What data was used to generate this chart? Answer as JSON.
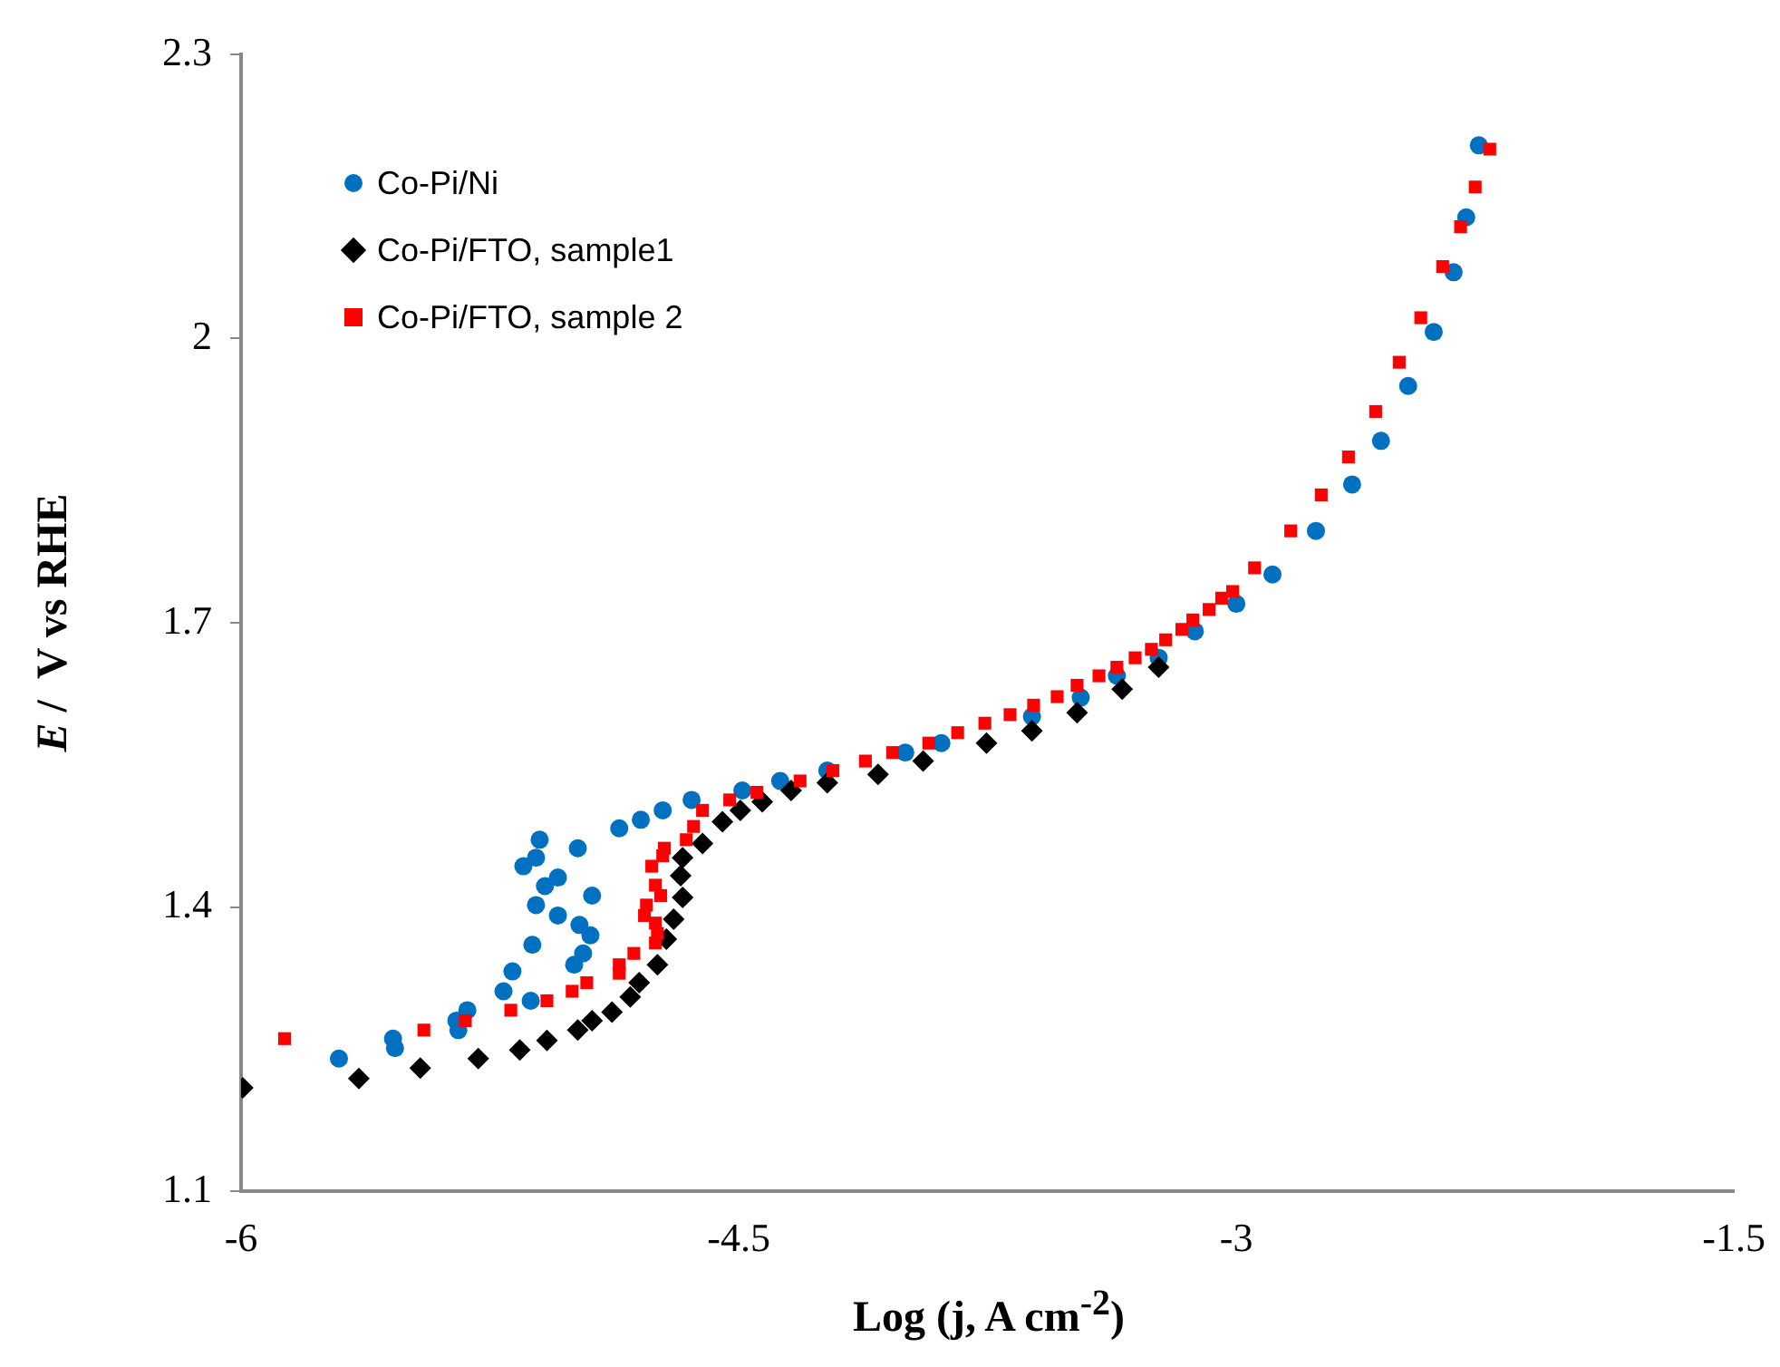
{
  "chart_data": {
    "type": "scatter",
    "xlabel": "Log (j, A cm$^{-2}$)",
    "ylabel": "E /  V vs RHE",
    "xlim": [
      -6,
      -1.5
    ],
    "xticks": [
      -6,
      -4.5,
      -3,
      -1.5
    ],
    "ylim": [
      1.1,
      2.3
    ],
    "yticks": [
      1.1,
      1.4,
      1.7,
      2,
      2.3
    ],
    "grid": false,
    "legend": "top left",
    "series": [
      {
        "name": "Co-Pi/Ni",
        "color": "#0070c0",
        "marker": "circle",
        "x": [
          -5.705,
          -5.542,
          -5.536,
          -5.351,
          -5.345,
          -5.318,
          -5.209,
          -5.182,
          -5.127,
          -5.122,
          -5.111,
          -5.149,
          -5.1,
          -5.111,
          -5.084,
          -5.045,
          -5.045,
          -4.996,
          -4.969,
          -4.98,
          -4.947,
          -4.942,
          -4.985,
          -4.86,
          -4.795,
          -4.729,
          -4.642,
          -4.489,
          -4.375,
          -4.233,
          -3.998,
          -3.889,
          -3.616,
          -3.469,
          -3.36,
          -3.234,
          -3.125,
          -3,
          -2.891,
          -2.76,
          -2.651,
          -2.564,
          -2.482,
          -2.405,
          -2.345,
          -2.307,
          -2.269
        ],
        "values": [
          1.24,
          1.261,
          1.251,
          1.28,
          1.27,
          1.291,
          1.311,
          1.332,
          1.301,
          1.36,
          1.402,
          1.443,
          1.471,
          1.452,
          1.422,
          1.431,
          1.391,
          1.339,
          1.351,
          1.381,
          1.37,
          1.412,
          1.462,
          1.483,
          1.492,
          1.502,
          1.513,
          1.523,
          1.533,
          1.544,
          1.563,
          1.573,
          1.601,
          1.621,
          1.644,
          1.663,
          1.691,
          1.72,
          1.751,
          1.797,
          1.846,
          1.892,
          1.95,
          2.007,
          2.07,
          2.128,
          2.204
        ]
      },
      {
        "name": "Co-Pi/FTO, sample1",
        "color": "#000000",
        "marker": "diamond",
        "x": [
          -5.995,
          -5.645,
          -5.46,
          -5.285,
          -5.16,
          -5.078,
          -4.985,
          -4.942,
          -4.882,
          -4.827,
          -4.8,
          -4.745,
          -4.718,
          -4.696,
          -4.669,
          -4.675,
          -4.669,
          -4.609,
          -4.549,
          -4.495,
          -4.429,
          -4.342,
          -4.233,
          -4.08,
          -3.944,
          -3.753,
          -3.616,
          -3.48,
          -3.344,
          -3.234
        ],
        "values": [
          1.209,
          1.219,
          1.23,
          1.24,
          1.249,
          1.259,
          1.27,
          1.28,
          1.289,
          1.305,
          1.32,
          1.339,
          1.366,
          1.387,
          1.41,
          1.433,
          1.452,
          1.467,
          1.49,
          1.502,
          1.511,
          1.523,
          1.531,
          1.54,
          1.554,
          1.573,
          1.586,
          1.605,
          1.63,
          1.653
        ]
      },
      {
        "name": "Co-Pi/FTO, sample 2",
        "color": "#ff0000",
        "marker": "square",
        "x": [
          -5.869,
          -5.449,
          -5.324,
          -5.187,
          -5.078,
          -5.002,
          -4.958,
          -4.86,
          -4.86,
          -4.816,
          -4.751,
          -4.745,
          -4.751,
          -4.784,
          -4.778,
          -4.735,
          -4.751,
          -4.762,
          -4.729,
          -4.724,
          -4.658,
          -4.636,
          -4.609,
          -4.527,
          -4.445,
          -4.315,
          -4.216,
          -4.118,
          -4.036,
          -3.927,
          -3.84,
          -3.758,
          -3.682,
          -3.611,
          -3.54,
          -3.48,
          -3.414,
          -3.36,
          -3.305,
          -3.256,
          -3.213,
          -3.164,
          -3.131,
          -3.082,
          -3.044,
          -3.011,
          -2.945,
          -2.836,
          -2.744,
          -2.662,
          -2.58,
          -2.509,
          -2.444,
          -2.378,
          -2.324,
          -2.28,
          -2.236
        ],
        "values": [
          1.261,
          1.27,
          1.28,
          1.291,
          1.301,
          1.311,
          1.32,
          1.33,
          1.339,
          1.351,
          1.362,
          1.372,
          1.383,
          1.391,
          1.402,
          1.412,
          1.423,
          1.443,
          1.454,
          1.462,
          1.471,
          1.485,
          1.502,
          1.513,
          1.521,
          1.533,
          1.544,
          1.554,
          1.563,
          1.573,
          1.584,
          1.594,
          1.603,
          1.613,
          1.622,
          1.634,
          1.644,
          1.653,
          1.663,
          1.672,
          1.682,
          1.693,
          1.703,
          1.714,
          1.726,
          1.733,
          1.758,
          1.797,
          1.835,
          1.875,
          1.923,
          1.975,
          2.022,
          2.076,
          2.118,
          2.16,
          2.2
        ]
      }
    ]
  }
}
